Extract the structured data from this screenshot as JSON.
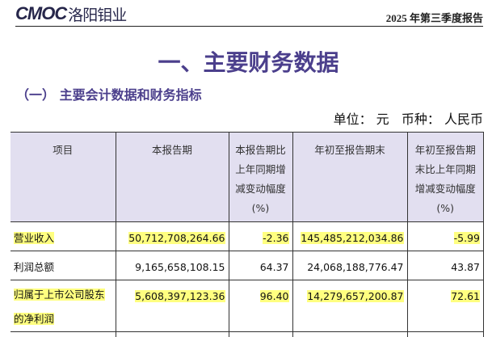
{
  "header": {
    "logo_en": "CMOC",
    "logo_cn": "洛阳钼业",
    "report_name": "2025 年第三季度报告"
  },
  "title": "一、主要财务数据",
  "subtitle": "（一） 主要会计数据和财务指标",
  "unit": "单位： 元   币种： 人民币",
  "table": {
    "columns": [
      "项目",
      "本报告期",
      "本报告期比上年同期增减变动幅度(%)",
      "年初至报告期末",
      "年初至报告期末比上年同期增减变动幅度(%)"
    ],
    "rows": [
      {
        "item": "营业收入",
        "current": "50,712,708,264.66",
        "current_change": "-2.36",
        "ytd": "145,485,212,034.86",
        "ytd_change": "-5.99",
        "highlighted": true
      },
      {
        "item": "利润总额",
        "current": "9,165,658,108.15",
        "current_change": "64.37",
        "ytd": "24,068,188,776.47",
        "ytd_change": "43.87",
        "highlighted": false
      },
      {
        "item": "归属于上市公司股东的净利润",
        "current": "5,608,397,123.36",
        "current_change": "96.40",
        "ytd": "14,279,657,200.87",
        "ytd_change": "72.61",
        "highlighted": true
      }
    ]
  },
  "colors": {
    "accent": "#4b3f8c",
    "header_bg": "#e2dff0",
    "highlight": "#ffff80"
  }
}
